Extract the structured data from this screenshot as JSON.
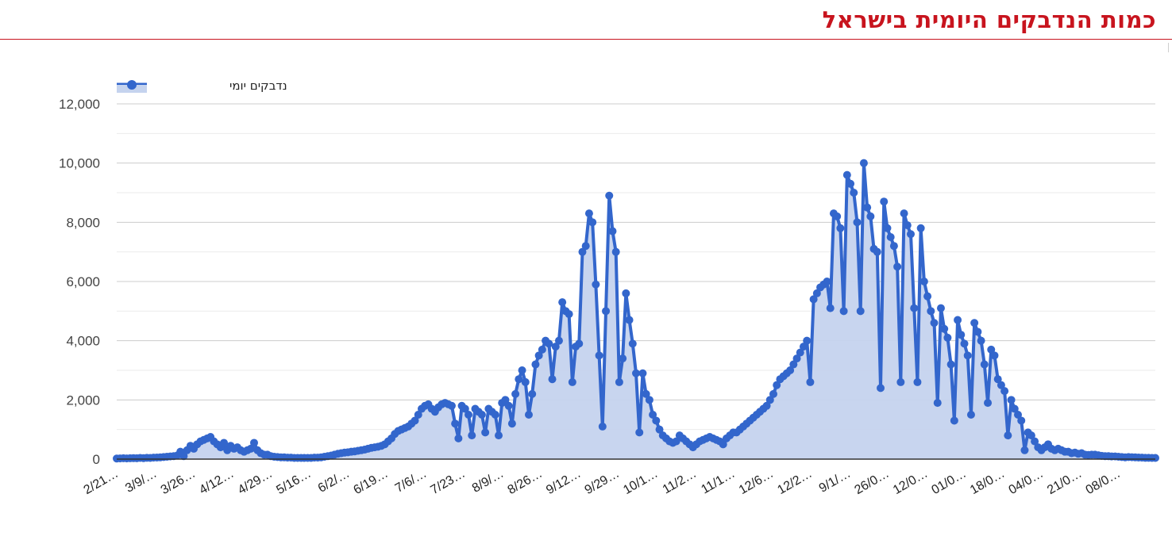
{
  "title": "כמות הנדבקים היומית בישראל",
  "colors": {
    "title": "#c8141e",
    "line": "#3366cc",
    "fill": "#c5d3ee",
    "grid": "#cccccc"
  },
  "chart_data": {
    "type": "area",
    "title": "כמות הנדבקים היומית בישראל",
    "legend": {
      "label": "נדבקים יומי",
      "position": "top-left"
    },
    "ylim": [
      0,
      12000
    ],
    "y_ticks": [
      "12,000",
      "10,000",
      "8,000",
      "6,000",
      "4,000",
      "2,000",
      "0"
    ],
    "x_tick_labels": [
      "2/21…",
      "3/9/…",
      "3/26…",
      "4/12…",
      "4/29…",
      "5/16…",
      "6/2/…",
      "6/19…",
      "7/6/…",
      "7/23…",
      "8/9/…",
      "8/26…",
      "9/12…",
      "9/29…",
      "10/1…",
      "11/2…",
      "11/1…",
      "12/6…",
      "12/2…",
      "9/1/…",
      "26/0…",
      "12/0…",
      "01/0…",
      "18/0…",
      "04/0…",
      "21/0…",
      "08/0…"
    ],
    "series": [
      {
        "name": "נדבקים יומי",
        "values": [
          20,
          25,
          30,
          25,
          30,
          35,
          30,
          40,
          35,
          45,
          40,
          50,
          55,
          60,
          70,
          80,
          90,
          100,
          120,
          250,
          100,
          300,
          450,
          350,
          500,
          600,
          650,
          700,
          750,
          600,
          500,
          400,
          550,
          300,
          450,
          350,
          400,
          300,
          250,
          300,
          350,
          550,
          300,
          200,
          150,
          150,
          100,
          80,
          70,
          60,
          60,
          50,
          50,
          40,
          40,
          40,
          40,
          40,
          40,
          50,
          50,
          60,
          80,
          100,
          120,
          150,
          180,
          200,
          220,
          230,
          250,
          260,
          280,
          300,
          320,
          350,
          380,
          400,
          420,
          450,
          500,
          600,
          700,
          850,
          950,
          1000,
          1050,
          1100,
          1200,
          1300,
          1500,
          1700,
          1800,
          1850,
          1700,
          1600,
          1750,
          1850,
          1900,
          1850,
          1800,
          1200,
          700,
          1800,
          1700,
          1500,
          800,
          1700,
          1600,
          1500,
          900,
          1700,
          1600,
          1500,
          800,
          1900,
          2000,
          1800,
          1200,
          2200,
          2700,
          3000,
          2600,
          1500,
          2200,
          3200,
          3500,
          3700,
          4000,
          3900,
          2700,
          3800,
          4000,
          5300,
          5000,
          4900,
          2600,
          3800,
          3900,
          7000,
          7200,
          8300,
          8000,
          5900,
          3500,
          1100,
          5000,
          8900,
          7700,
          7000,
          2600,
          3400,
          5600,
          4700,
          3900,
          2900,
          900,
          2900,
          2200,
          2000,
          1500,
          1300,
          1000,
          800,
          700,
          600,
          550,
          600,
          800,
          700,
          600,
          500,
          400,
          500,
          600,
          650,
          700,
          750,
          700,
          650,
          600,
          500,
          700,
          800,
          900,
          900,
          1000,
          1100,
          1200,
          1300,
          1400,
          1500,
          1600,
          1700,
          1800,
          2000,
          2200,
          2500,
          2700,
          2800,
          2900,
          3000,
          3200,
          3400,
          3600,
          3800,
          4000,
          2600,
          5400,
          5600,
          5800,
          5900,
          6000,
          5100,
          8300,
          8200,
          7800,
          5000,
          9600,
          9300,
          9000,
          8000,
          5000,
          10000,
          8500,
          8200,
          7100,
          7000,
          2400,
          8700,
          7800,
          7500,
          7200,
          6500,
          2600,
          8300,
          7900,
          7600,
          5100,
          2600,
          7800,
          6000,
          5500,
          5000,
          4600,
          1900,
          5100,
          4400,
          4100,
          3200,
          1300,
          4700,
          4200,
          3900,
          3500,
          1500,
          4600,
          4300,
          4000,
          3200,
          1900,
          3700,
          3500,
          2700,
          2500,
          2300,
          800,
          2000,
          1700,
          1500,
          1300,
          300,
          900,
          800,
          600,
          400,
          300,
          400,
          500,
          350,
          300,
          350,
          300,
          250,
          250,
          200,
          220,
          180,
          200,
          150,
          140,
          150,
          150,
          130,
          110,
          100,
          100,
          90,
          90,
          80,
          70,
          60,
          70,
          65,
          60,
          55,
          50,
          45,
          45,
          40,
          40
        ]
      }
    ]
  }
}
